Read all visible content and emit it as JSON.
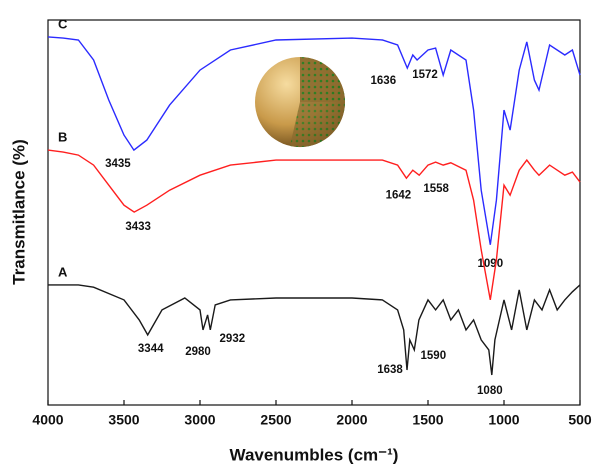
{
  "chart_data": {
    "type": "line",
    "xlabel": "Wavenumbles (cm⁻¹)",
    "ylabel": "Transmitlance (%)",
    "xlim": [
      4000,
      500
    ],
    "ylim": [
      0,
      100
    ],
    "xticks": [
      4000,
      3500,
      3000,
      2500,
      2000,
      1500,
      1000,
      500
    ],
    "series": [
      {
        "name": "C",
        "color": "#2b2bff",
        "x": [
          4000,
          3900,
          3800,
          3700,
          3600,
          3500,
          3435,
          3350,
          3200,
          3000,
          2800,
          2500,
          2000,
          1800,
          1700,
          1636,
          1600,
          1572,
          1500,
          1450,
          1400,
          1350,
          1250,
          1200,
          1150,
          1090,
          1050,
          1000,
          960,
          900,
          850,
          800,
          770,
          700,
          600,
          550,
          500
        ],
        "values": [
          95.6,
          95.3,
          94.8,
          89.6,
          79.2,
          70.1,
          66.2,
          68.8,
          77.9,
          87.0,
          92.2,
          94.8,
          95.3,
          94.8,
          93.5,
          87.5,
          90.9,
          89.6,
          92.2,
          92.7,
          85.7,
          92.2,
          89.6,
          76.6,
          55.8,
          41.6,
          53.2,
          76.6,
          71.4,
          87.0,
          94.3,
          84.4,
          81.8,
          93.5,
          90.9,
          92.2,
          85.7
        ],
        "peaks": [
          3435,
          1636,
          1572,
          1090
        ]
      },
      {
        "name": "B",
        "color": "#ff1f1f",
        "x": [
          4000,
          3900,
          3800,
          3700,
          3600,
          3500,
          3433,
          3350,
          3200,
          3000,
          2800,
          2500,
          2000,
          1800,
          1700,
          1642,
          1600,
          1558,
          1500,
          1450,
          1400,
          1350,
          1250,
          1200,
          1150,
          1090,
          1050,
          1000,
          960,
          900,
          850,
          800,
          770,
          700,
          600,
          550,
          500
        ],
        "values": [
          66.2,
          65.7,
          64.9,
          62.3,
          57.1,
          51.9,
          50.1,
          51.9,
          55.8,
          59.7,
          62.3,
          63.6,
          63.6,
          63.6,
          62.3,
          58.9,
          61.0,
          59.7,
          62.3,
          63.1,
          62.3,
          62.9,
          61.0,
          53.2,
          40.3,
          27.3,
          37.7,
          57.1,
          54.5,
          61.0,
          63.6,
          61.0,
          59.7,
          62.3,
          59.7,
          60.5,
          57.9
        ],
        "peaks": [
          3433,
          1642,
          1558
        ]
      },
      {
        "name": "A",
        "color": "#1a1a1a",
        "x": [
          4000,
          3800,
          3700,
          3500,
          3400,
          3344,
          3250,
          3100,
          3000,
          2980,
          2950,
          2932,
          2900,
          2800,
          2500,
          2000,
          1800,
          1700,
          1660,
          1638,
          1620,
          1590,
          1560,
          1500,
          1450,
          1400,
          1350,
          1300,
          1250,
          1200,
          1150,
          1100,
          1080,
          1060,
          1000,
          950,
          900,
          850,
          800,
          750,
          700,
          650,
          600,
          550,
          500
        ],
        "values": [
          31.2,
          31.2,
          30.6,
          27.3,
          22.1,
          18.2,
          24.7,
          27.8,
          24.7,
          19.5,
          23.4,
          19.5,
          26.0,
          27.3,
          27.8,
          27.8,
          27.3,
          24.7,
          19.5,
          9.1,
          16.9,
          14.3,
          22.1,
          27.3,
          24.7,
          27.3,
          22.1,
          24.7,
          19.5,
          22.1,
          16.9,
          14.3,
          7.8,
          16.9,
          27.3,
          19.5,
          29.9,
          19.5,
          27.3,
          24.7,
          29.9,
          24.7,
          27.3,
          29.4,
          31.2
        ],
        "peaks": [
          3344,
          2980,
          2932,
          1638,
          1590,
          1080
        ]
      }
    ]
  }
}
